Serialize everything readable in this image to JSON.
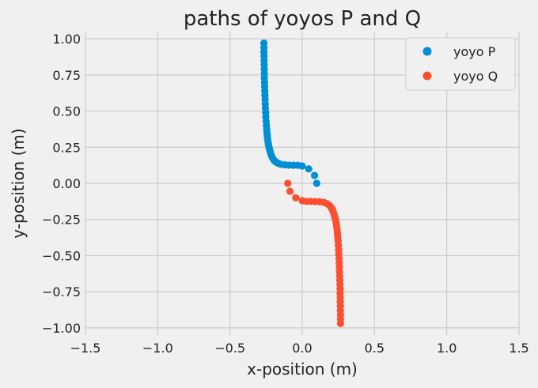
{
  "chart_data": {
    "type": "scatter",
    "title": "paths of yoyos P and Q",
    "xlabel": "x-position (m)",
    "ylabel": "y-position (m)",
    "xlim": [
      -1.5,
      1.5
    ],
    "ylim": [
      -1.05,
      1.05
    ],
    "xticks": [
      "−1.5",
      "−1.0",
      "−0.5",
      "0.0",
      "0.5",
      "1.0",
      "1.5"
    ],
    "yticks": [
      "−1.00",
      "−0.75",
      "−0.50",
      "−0.25",
      "0.00",
      "0.25",
      "0.50",
      "0.75",
      "1.00"
    ],
    "grid": true,
    "legend_position": "top-right",
    "series": [
      {
        "name": "yoyo P",
        "color": "#008fd5",
        "points": [
          [
            0.1,
            0.0
          ],
          [
            0.085,
            0.055
          ],
          [
            0.045,
            0.1
          ],
          [
            0.0,
            0.12
          ],
          [
            -0.03,
            0.125
          ],
          [
            -0.06,
            0.125
          ],
          [
            -0.09,
            0.126
          ],
          [
            -0.12,
            0.128
          ],
          [
            -0.15,
            0.132
          ],
          [
            -0.17,
            0.14
          ],
          [
            -0.185,
            0.15
          ],
          [
            -0.195,
            0.16
          ],
          [
            -0.205,
            0.175
          ],
          [
            -0.212,
            0.19
          ],
          [
            -0.218,
            0.205
          ],
          [
            -0.222,
            0.22
          ],
          [
            -0.226,
            0.235
          ],
          [
            -0.23,
            0.25
          ],
          [
            -0.234,
            0.27
          ],
          [
            -0.237,
            0.29
          ],
          [
            -0.24,
            0.31
          ],
          [
            -0.242,
            0.33
          ],
          [
            -0.244,
            0.35
          ],
          [
            -0.246,
            0.375
          ],
          [
            -0.248,
            0.4
          ],
          [
            -0.25,
            0.43
          ],
          [
            -0.252,
            0.46
          ],
          [
            -0.253,
            0.49
          ],
          [
            -0.255,
            0.52
          ],
          [
            -0.256,
            0.55
          ],
          [
            -0.257,
            0.58
          ],
          [
            -0.258,
            0.61
          ],
          [
            -0.259,
            0.64
          ],
          [
            -0.26,
            0.67
          ],
          [
            -0.261,
            0.7
          ],
          [
            -0.262,
            0.73
          ],
          [
            -0.262,
            0.76
          ],
          [
            -0.263,
            0.79
          ],
          [
            -0.263,
            0.82
          ],
          [
            -0.264,
            0.85
          ],
          [
            -0.264,
            0.88
          ],
          [
            -0.265,
            0.91
          ],
          [
            -0.265,
            0.94
          ],
          [
            -0.265,
            0.97
          ]
        ]
      },
      {
        "name": "yoyo Q",
        "color": "#fc4f30",
        "points": [
          [
            -0.1,
            0.0
          ],
          [
            -0.085,
            -0.055
          ],
          [
            -0.045,
            -0.1
          ],
          [
            0.0,
            -0.12
          ],
          [
            0.03,
            -0.125
          ],
          [
            0.06,
            -0.125
          ],
          [
            0.09,
            -0.126
          ],
          [
            0.12,
            -0.128
          ],
          [
            0.15,
            -0.132
          ],
          [
            0.17,
            -0.14
          ],
          [
            0.185,
            -0.15
          ],
          [
            0.195,
            -0.16
          ],
          [
            0.205,
            -0.175
          ],
          [
            0.212,
            -0.19
          ],
          [
            0.218,
            -0.205
          ],
          [
            0.222,
            -0.22
          ],
          [
            0.226,
            -0.235
          ],
          [
            0.23,
            -0.25
          ],
          [
            0.234,
            -0.27
          ],
          [
            0.237,
            -0.29
          ],
          [
            0.24,
            -0.31
          ],
          [
            0.242,
            -0.33
          ],
          [
            0.244,
            -0.35
          ],
          [
            0.246,
            -0.375
          ],
          [
            0.248,
            -0.4
          ],
          [
            0.25,
            -0.43
          ],
          [
            0.252,
            -0.46
          ],
          [
            0.253,
            -0.49
          ],
          [
            0.255,
            -0.52
          ],
          [
            0.256,
            -0.55
          ],
          [
            0.257,
            -0.58
          ],
          [
            0.258,
            -0.61
          ],
          [
            0.259,
            -0.64
          ],
          [
            0.26,
            -0.67
          ],
          [
            0.261,
            -0.7
          ],
          [
            0.262,
            -0.73
          ],
          [
            0.262,
            -0.76
          ],
          [
            0.263,
            -0.79
          ],
          [
            0.263,
            -0.82
          ],
          [
            0.264,
            -0.85
          ],
          [
            0.264,
            -0.88
          ],
          [
            0.265,
            -0.91
          ],
          [
            0.265,
            -0.94
          ],
          [
            0.265,
            -0.97
          ]
        ]
      }
    ]
  }
}
